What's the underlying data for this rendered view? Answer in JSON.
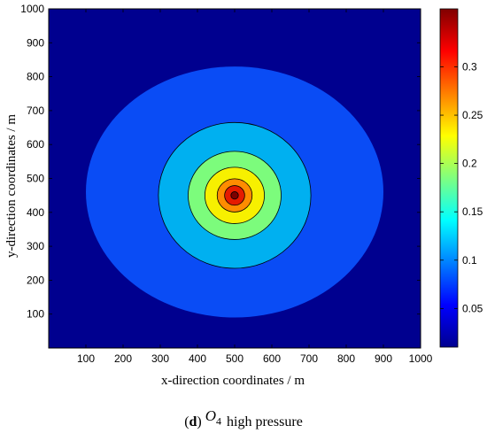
{
  "chart_data": {
    "type": "heatmap",
    "subtype": "filled-contour",
    "xlabel": "x-direction coordinates / m",
    "ylabel": "y-direction coordinates / m",
    "xlim": [
      0,
      1000
    ],
    "ylim": [
      0,
      1000
    ],
    "x_ticks": [
      "100",
      "200",
      "300",
      "400",
      "500",
      "600",
      "700",
      "800",
      "900",
      "1000"
    ],
    "y_ticks": [
      "100",
      "200",
      "300",
      "400",
      "500",
      "600",
      "700",
      "800",
      "900",
      "1000"
    ],
    "colorbar": {
      "range": [
        0.01,
        0.36
      ],
      "ticks": [
        "0.05",
        "0.1",
        "0.15",
        "0.2",
        "0.25",
        "0.3"
      ],
      "colormap": "jet"
    },
    "contour_levels": [
      {
        "value": 0.05,
        "center": [
          500,
          460
        ],
        "rx": 400,
        "ry": 370,
        "color": "#0a4cf5"
      },
      {
        "value": 0.1,
        "center": [
          500,
          450
        ],
        "rx": 205,
        "ry": 215,
        "color": "#00b0f0"
      },
      {
        "value": 0.15,
        "center": [
          500,
          450
        ],
        "rx": 125,
        "ry": 130,
        "color": "#7cfc7c"
      },
      {
        "value": 0.2,
        "center": [
          500,
          450
        ],
        "rx": 80,
        "ry": 83,
        "color": "#f7f000"
      },
      {
        "value": 0.25,
        "center": [
          500,
          450
        ],
        "rx": 47,
        "ry": 49,
        "color": "#ff8c00"
      },
      {
        "value": 0.3,
        "center": [
          500,
          450
        ],
        "rx": 27,
        "ry": 29,
        "color": "#e51a00"
      },
      {
        "value": 0.35,
        "center": [
          500,
          450
        ],
        "rx": 10,
        "ry": 11,
        "color": "#7d0000"
      }
    ],
    "background_color": "#00008f"
  },
  "caption": {
    "label": "d",
    "symbol": "O",
    "subscript": "4",
    "text": "high pressure"
  }
}
